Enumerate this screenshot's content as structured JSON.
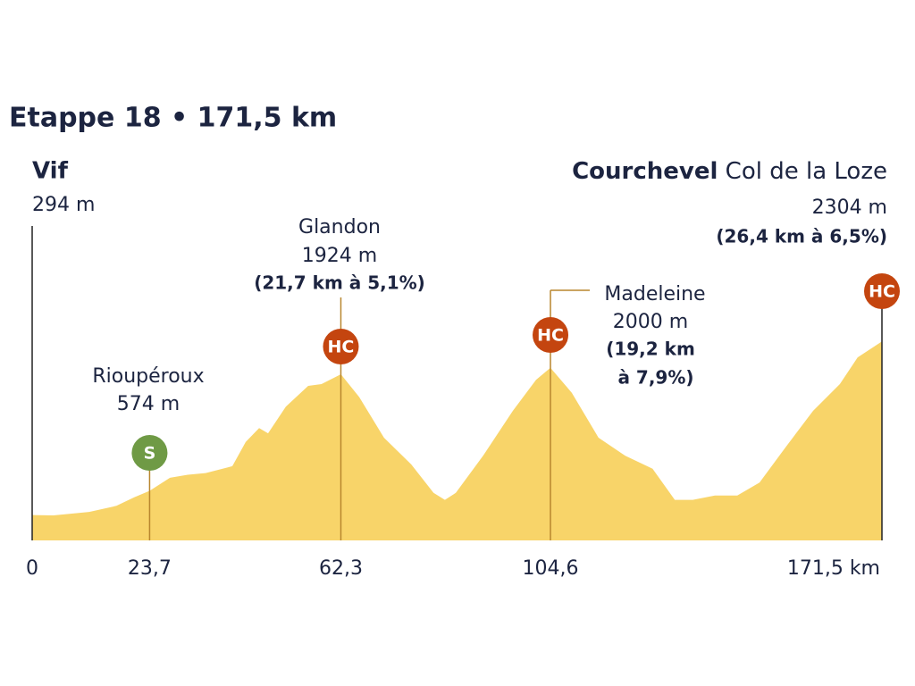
{
  "chart_data": {
    "type": "area",
    "title": "Etappe 18 • 171,5 km",
    "start": {
      "name": "Vif",
      "elevation": "294 m"
    },
    "finish": {
      "name": "Courchevel",
      "place": "Col de la Loze",
      "elevation": "2304 m",
      "detail": "(26,4 km à 6,5%)",
      "badge": "HC"
    },
    "color": "#f8d469",
    "x": [
      0,
      4.3,
      11.5,
      17,
      20.6,
      23.7,
      27.8,
      31.4,
      35,
      40.4,
      43.1,
      45.8,
      47.6,
      51.2,
      55.7,
      58.4,
      62.3,
      66,
      71,
      76.5,
      81,
      83.3,
      85.5,
      91,
      97,
      101.7,
      104.6,
      108.9,
      114.3,
      119.7,
      125.2,
      129.7,
      133.3,
      137.8,
      142.3,
      146.8,
      152.2,
      157.6,
      163,
      166.6,
      171.5
    ],
    "values": [
      294,
      290,
      330,
      400,
      500,
      574,
      725,
      760,
      780,
      860,
      1140,
      1300,
      1240,
      1550,
      1790,
      1810,
      1924,
      1660,
      1190,
      880,
      550,
      470,
      550,
      980,
      1500,
      1860,
      2000,
      1710,
      1190,
      980,
      830,
      470,
      470,
      520,
      520,
      670,
      1090,
      1500,
      1810,
      2120,
      2304
    ],
    "xlim": [
      0,
      171.5
    ],
    "ylim": [
      0,
      2400
    ],
    "xticks": [
      0,
      {
        "value": 23.7,
        "label": "23,7"
      },
      {
        "value": 62.3,
        "label": "62,3"
      },
      {
        "value": 104.6,
        "label": "104,6"
      },
      {
        "value": 171.5,
        "label": "171,5 km"
      }
    ],
    "climbs": [
      {
        "x": 23.7,
        "name": "Rioupéroux",
        "elevation": "574 m",
        "badge": "S",
        "badge_color": "#6f9a45"
      },
      {
        "x": 62.3,
        "name": "Glandon",
        "elevation": "1924 m",
        "detail": [
          "(21,7 km à 5,1%)"
        ],
        "badge": "HC",
        "badge_color": "#c4450f"
      },
      {
        "x": 104.6,
        "name": "Madeleine",
        "elevation": "2000 m",
        "detail": [
          "(19,2 km",
          "à 7,9%)"
        ],
        "badge": "HC",
        "badge_color": "#c4450f"
      }
    ],
    "finish_badge_color": "#c4450f"
  }
}
